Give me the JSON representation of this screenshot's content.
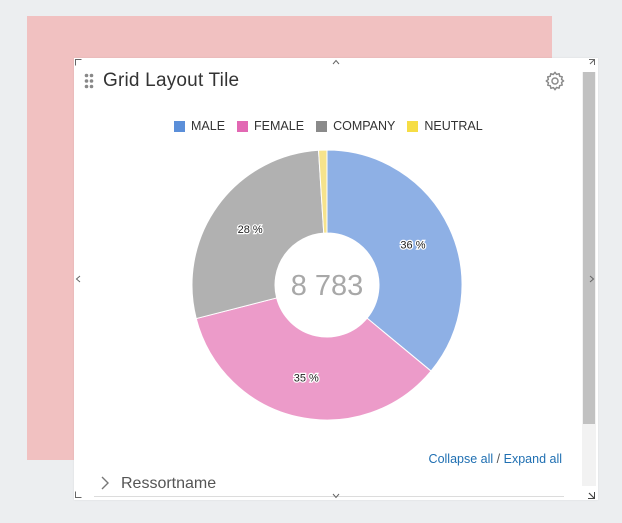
{
  "tile": {
    "title": "Grid Layout Tile",
    "links": {
      "collapse": "Collapse all",
      "separator": "/",
      "expand": "Expand all"
    },
    "tree": {
      "label": "Ressortname"
    }
  },
  "chart_data": {
    "type": "pie",
    "variant": "donut",
    "center_label": "8 783",
    "categories": [
      "MALE",
      "FEMALE",
      "COMPANY",
      "NEUTRAL"
    ],
    "values": [
      36,
      35,
      28,
      1
    ],
    "data_labels": [
      "36 %",
      "35 %",
      "28 %",
      ""
    ],
    "colors": [
      "#8eb0e5",
      "#ec9bc9",
      "#b1b1b1",
      "#f6e38c"
    ],
    "legend_colors": [
      "#5b8fd9",
      "#e268b3",
      "#8a8a8a",
      "#f6dd45"
    ],
    "legend_position": "top"
  },
  "icons": {
    "settings": "gear-icon",
    "drag": "drag-handle-icon",
    "expand": "chevron-right-icon"
  }
}
